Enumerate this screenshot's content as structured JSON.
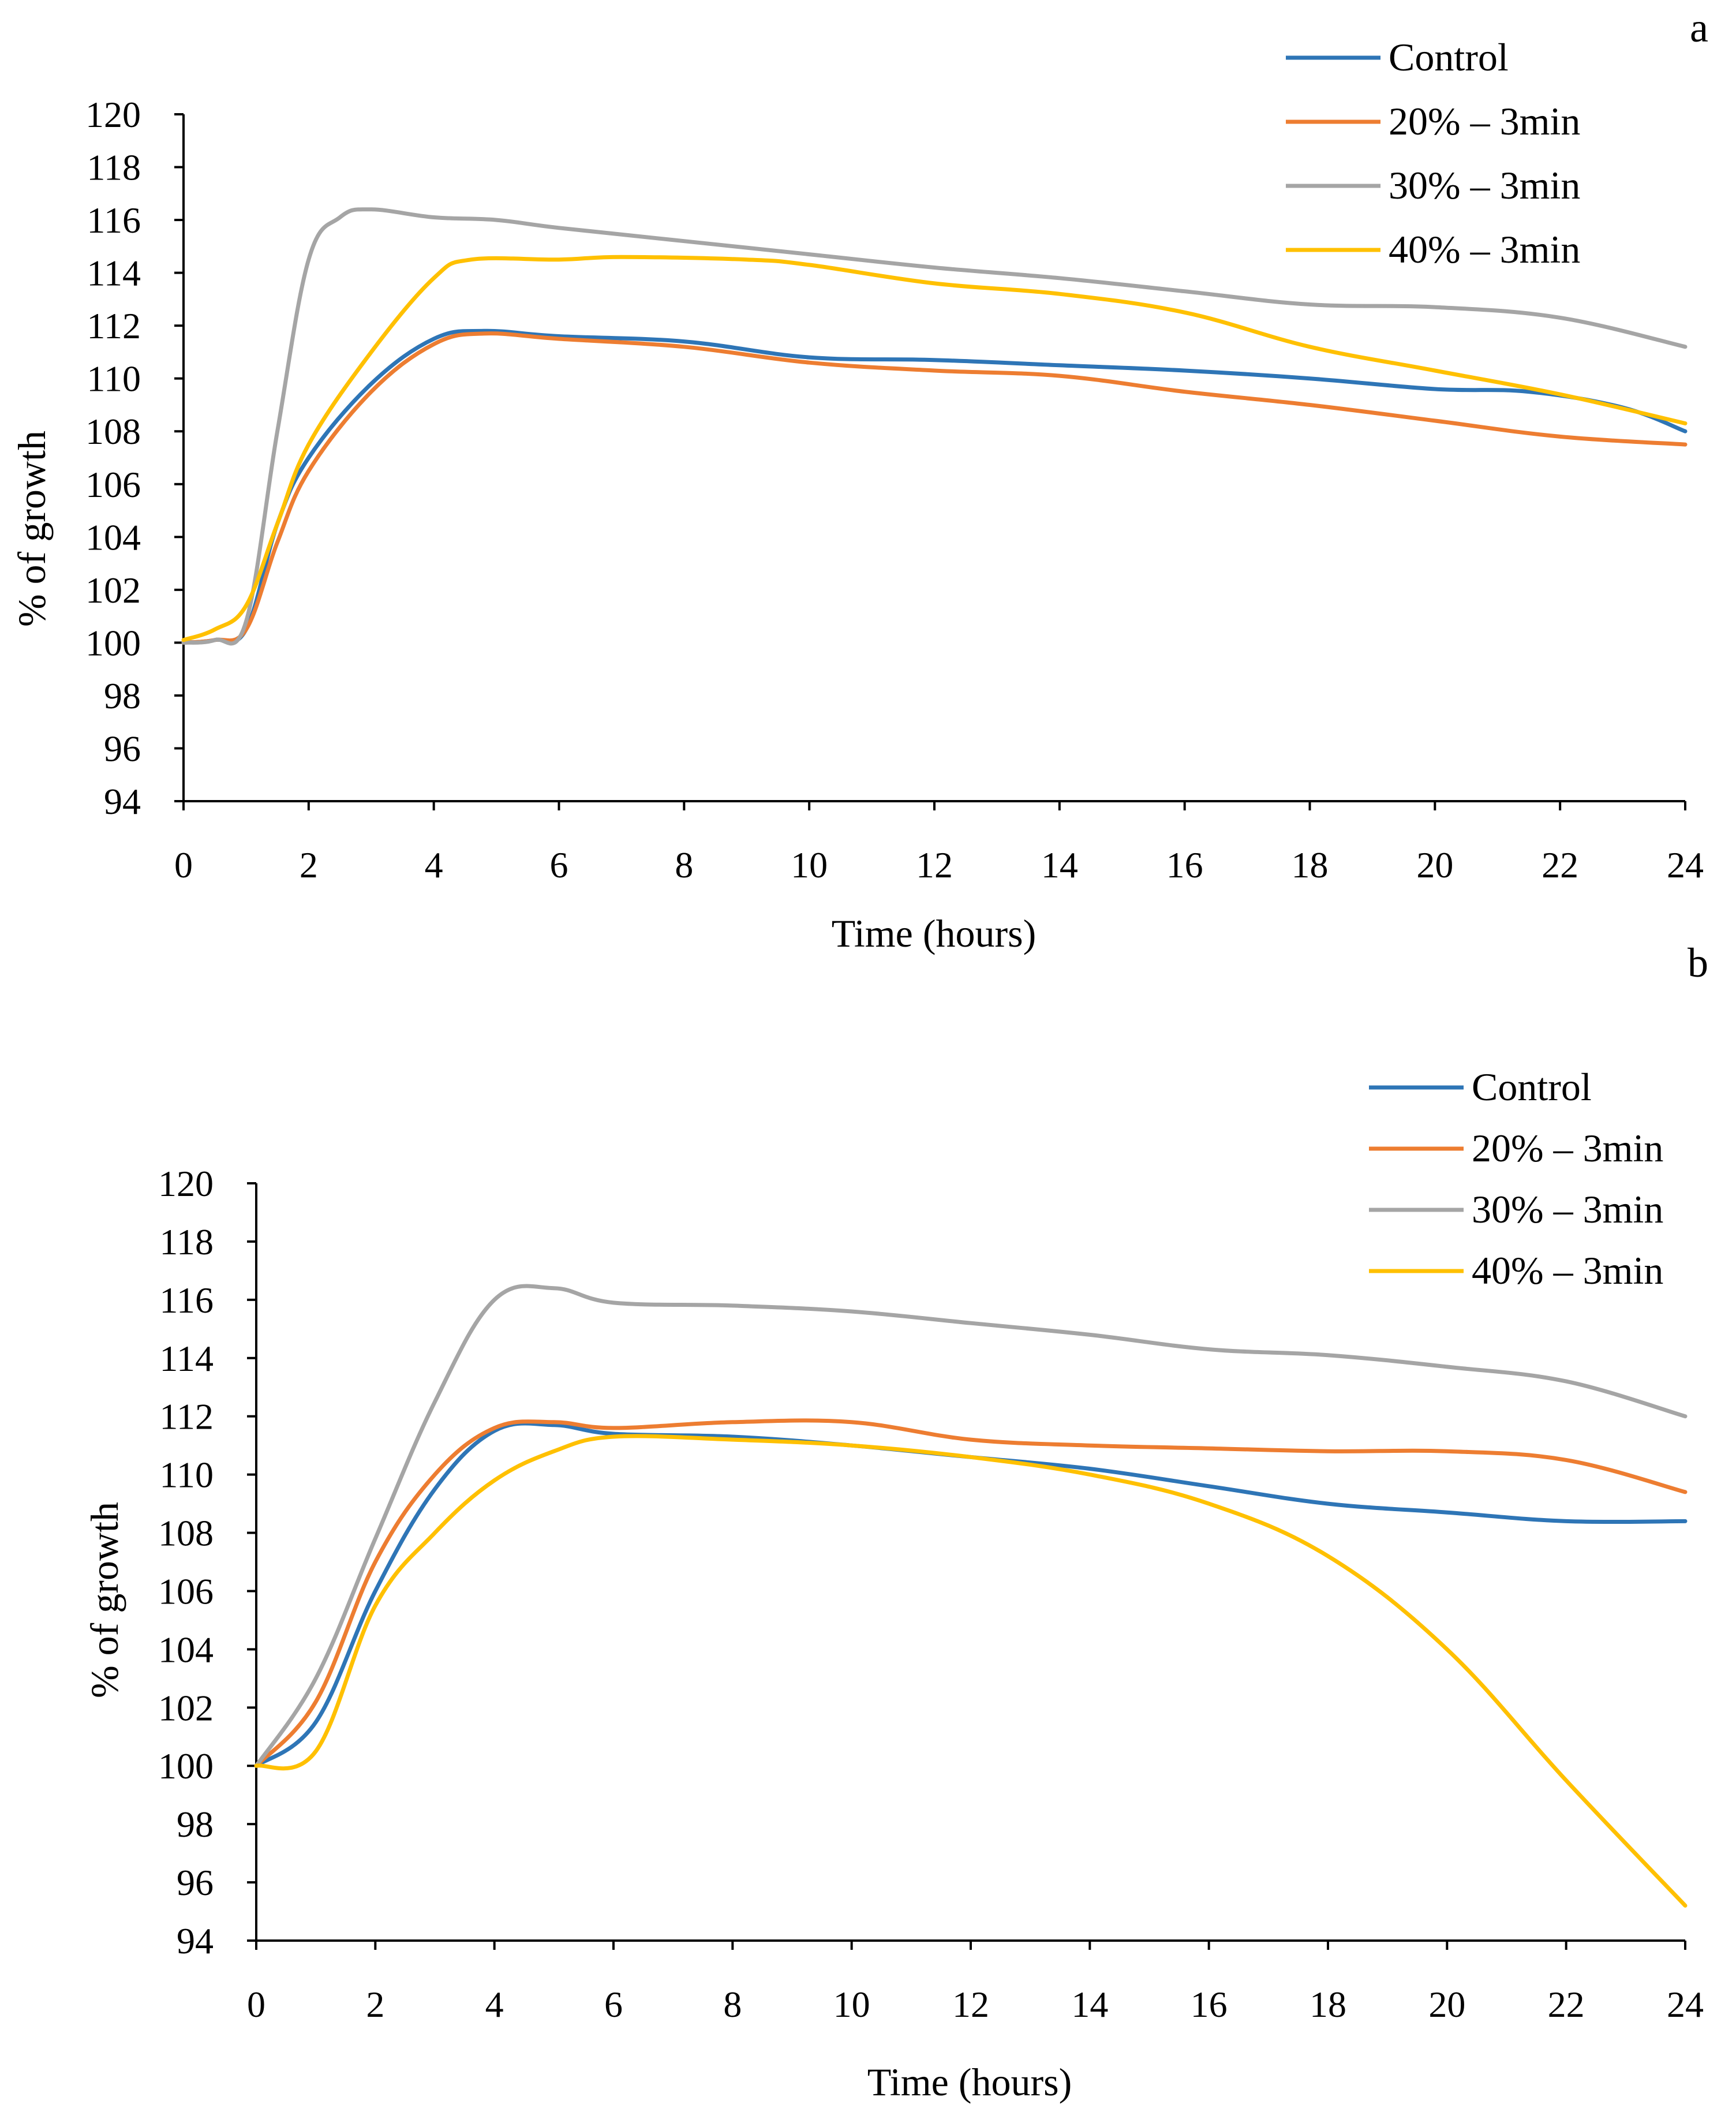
{
  "figure": {
    "description_labels": [
      "a",
      "b"
    ]
  },
  "chart_data": [
    {
      "type": "line",
      "panel_label": "a",
      "title": "",
      "xlabel": "Time (hours)",
      "ylabel": "% of growth",
      "xlim": [
        0,
        24
      ],
      "ylim": [
        94,
        120
      ],
      "x_ticks": [
        0,
        2,
        4,
        6,
        8,
        10,
        12,
        14,
        16,
        18,
        20,
        22,
        24
      ],
      "y_ticks": [
        94,
        96,
        98,
        100,
        102,
        104,
        106,
        108,
        110,
        112,
        114,
        116,
        118,
        120
      ],
      "grid": false,
      "legend_position": "top-right",
      "series": [
        {
          "name": "Control",
          "color": "#2E75B6",
          "points": [
            [
              0,
              100
            ],
            [
              0.5,
              100.1
            ],
            [
              1,
              100.5
            ],
            [
              1.5,
              104.5
            ],
            [
              2,
              107
            ],
            [
              3,
              109.8
            ],
            [
              4,
              111.5
            ],
            [
              4.8,
              111.8
            ],
            [
              6,
              111.6
            ],
            [
              8,
              111.4
            ],
            [
              10,
              110.8
            ],
            [
              12,
              110.7
            ],
            [
              14,
              110.5
            ],
            [
              16,
              110.3
            ],
            [
              18,
              110
            ],
            [
              20,
              109.6
            ],
            [
              21.5,
              109.5
            ],
            [
              23,
              108.9
            ],
            [
              24,
              108
            ]
          ]
        },
        {
          "name": "20% – 3min",
          "color": "#ED7D31",
          "points": [
            [
              0,
              100
            ],
            [
              0.5,
              100.1
            ],
            [
              1,
              100.5
            ],
            [
              1.5,
              103.8
            ],
            [
              2,
              106.5
            ],
            [
              3,
              109.5
            ],
            [
              4,
              111.3
            ],
            [
              4.8,
              111.7
            ],
            [
              6,
              111.5
            ],
            [
              8,
              111.2
            ],
            [
              10,
              110.6
            ],
            [
              12,
              110.3
            ],
            [
              14,
              110.1
            ],
            [
              16,
              109.5
            ],
            [
              18,
              109
            ],
            [
              20,
              108.4
            ],
            [
              22,
              107.8
            ],
            [
              24,
              107.5
            ]
          ]
        },
        {
          "name": "30% – 3min",
          "color": "#A5A5A5",
          "points": [
            [
              0,
              100
            ],
            [
              0.5,
              100.1
            ],
            [
              1,
              100.8
            ],
            [
              1.5,
              108
            ],
            [
              2,
              114.5
            ],
            [
              2.5,
              116.1
            ],
            [
              3,
              116.4
            ],
            [
              4,
              116.1
            ],
            [
              5,
              116
            ],
            [
              6,
              115.7
            ],
            [
              8,
              115.2
            ],
            [
              10,
              114.7
            ],
            [
              12,
              114.2
            ],
            [
              14,
              113.8
            ],
            [
              16,
              113.3
            ],
            [
              18,
              112.8
            ],
            [
              20,
              112.7
            ],
            [
              22,
              112.3
            ],
            [
              24,
              111.2
            ]
          ]
        },
        {
          "name": "40% – 3min",
          "color": "#FFC000",
          "points": [
            [
              0,
              100.1
            ],
            [
              0.5,
              100.5
            ],
            [
              1,
              101.4
            ],
            [
              1.5,
              104.5
            ],
            [
              2,
              107.5
            ],
            [
              3,
              111
            ],
            [
              4,
              113.8
            ],
            [
              4.6,
              114.5
            ],
            [
              6,
              114.5
            ],
            [
              7,
              114.6
            ],
            [
              9,
              114.5
            ],
            [
              10,
              114.3
            ],
            [
              12,
              113.6
            ],
            [
              14,
              113.2
            ],
            [
              16,
              112.5
            ],
            [
              18,
              111.2
            ],
            [
              20,
              110.3
            ],
            [
              22,
              109.4
            ],
            [
              24,
              108.3
            ]
          ]
        }
      ]
    },
    {
      "type": "line",
      "panel_label": "b",
      "title": "",
      "xlabel": "Time (hours)",
      "ylabel": "% of growth",
      "xlim": [
        0,
        24
      ],
      "ylim": [
        94,
        120
      ],
      "x_ticks": [
        0,
        2,
        4,
        6,
        8,
        10,
        12,
        14,
        16,
        18,
        20,
        22,
        24
      ],
      "y_ticks": [
        94,
        96,
        98,
        100,
        102,
        104,
        106,
        108,
        110,
        112,
        114,
        116,
        118,
        120
      ],
      "grid": false,
      "legend_position": "top-right",
      "series": [
        {
          "name": "Control",
          "color": "#2E75B6",
          "points": [
            [
              0,
              100
            ],
            [
              1,
              101.5
            ],
            [
              2,
              106
            ],
            [
              3,
              109.5
            ],
            [
              4,
              111.5
            ],
            [
              5,
              111.7
            ],
            [
              6,
              111.4
            ],
            [
              8,
              111.3
            ],
            [
              10,
              111
            ],
            [
              12,
              110.6
            ],
            [
              14,
              110.2
            ],
            [
              16,
              109.6
            ],
            [
              18,
              109
            ],
            [
              20,
              108.7
            ],
            [
              22,
              108.4
            ],
            [
              24,
              108.4
            ]
          ]
        },
        {
          "name": "20% – 3min",
          "color": "#ED7D31",
          "points": [
            [
              0,
              100
            ],
            [
              1,
              102.2
            ],
            [
              2,
              107
            ],
            [
              3,
              110
            ],
            [
              4,
              111.6
            ],
            [
              5,
              111.8
            ],
            [
              6,
              111.6
            ],
            [
              8,
              111.8
            ],
            [
              10,
              111.8
            ],
            [
              12,
              111.2
            ],
            [
              14,
              111
            ],
            [
              16,
              110.9
            ],
            [
              18,
              110.8
            ],
            [
              20,
              110.8
            ],
            [
              22,
              110.5
            ],
            [
              24,
              109.4
            ]
          ]
        },
        {
          "name": "30% – 3min",
          "color": "#A5A5A5",
          "points": [
            [
              0,
              100
            ],
            [
              1,
              103
            ],
            [
              2,
              107.8
            ],
            [
              3,
              112.5
            ],
            [
              4,
              116
            ],
            [
              5,
              116.4
            ],
            [
              6,
              115.9
            ],
            [
              8,
              115.8
            ],
            [
              10,
              115.6
            ],
            [
              12,
              115.2
            ],
            [
              14,
              114.8
            ],
            [
              16,
              114.3
            ],
            [
              18,
              114.1
            ],
            [
              20,
              113.7
            ],
            [
              22,
              113.2
            ],
            [
              24,
              112
            ]
          ]
        },
        {
          "name": "40% – 3min",
          "color": "#FFC000",
          "points": [
            [
              0,
              100
            ],
            [
              1,
              100.5
            ],
            [
              2,
              105.5
            ],
            [
              3,
              108
            ],
            [
              4,
              109.8
            ],
            [
              5,
              110.8
            ],
            [
              6,
              111.3
            ],
            [
              8,
              111.2
            ],
            [
              10,
              111
            ],
            [
              12,
              110.6
            ],
            [
              14,
              110
            ],
            [
              16,
              109
            ],
            [
              18,
              107.2
            ],
            [
              20,
              104
            ],
            [
              22,
              99.5
            ],
            [
              24,
              95.2
            ]
          ]
        }
      ]
    }
  ]
}
